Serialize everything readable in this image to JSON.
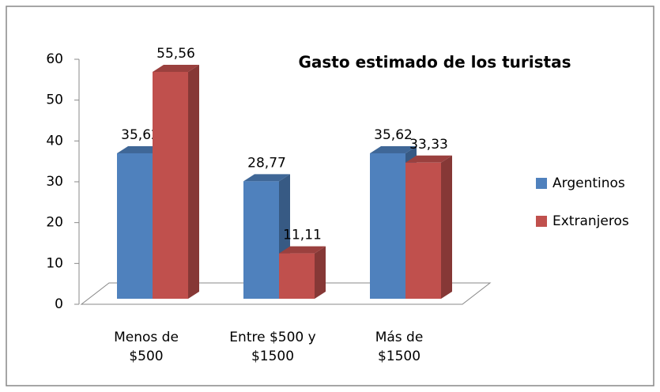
{
  "chart_data": {
    "type": "bar3d",
    "title": "Gasto estimado de los turistas",
    "categories": [
      "Menos de $500",
      "Entre $500 y $1500",
      "Más de $1500"
    ],
    "series": [
      {
        "name": "Argentinos",
        "color": "#4f81bd",
        "values": [
          35.62,
          28.77,
          35.62
        ],
        "value_labels": [
          "35,62",
          "28,77",
          "35,62"
        ]
      },
      {
        "name": "Extranjeros",
        "color": "#c0504d",
        "values": [
          55.56,
          11.11,
          33.33
        ],
        "value_labels": [
          "55,56",
          "11,11",
          "33,33"
        ]
      }
    ],
    "ylim": [
      0,
      60
    ],
    "yticks": [
      0,
      10,
      20,
      30,
      40,
      50,
      60
    ],
    "legend": "right"
  }
}
